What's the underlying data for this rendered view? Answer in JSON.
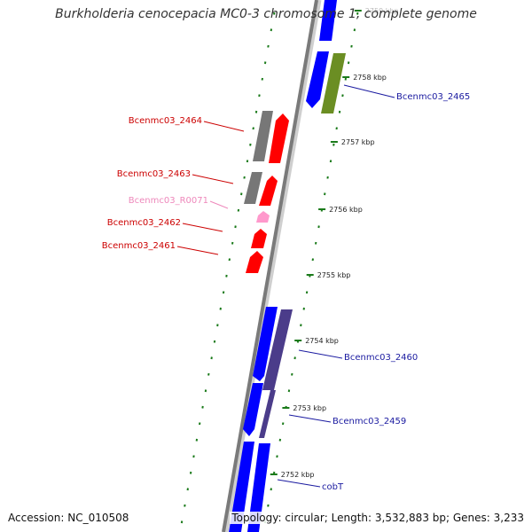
{
  "title": "Burkholderia cenocepacia MC0-3 chromosome 1, complete genome",
  "accession_text": "Accession: NC_010508",
  "summary_text": "Topology: circular; Length: 3,532,883 bp; Genes: 3,233",
  "colors": {
    "backbone": "#888888",
    "cds_forward": "#0000ff",
    "cds_reverse": "#ff0000",
    "rna": "#ff99cc",
    "cog_gray": "#777777",
    "cog_olive": "#6b8e23",
    "cog_purple": "#4b3c8a",
    "tick": "#1a7a1a",
    "label_forward": "#1a1aa0",
    "label_reverse": "#cc0000",
    "label_rna": "#ee88bb"
  },
  "ticks": [
    "2759 kbp",
    "2758 kbp",
    "2757 kbp",
    "2756 kbp",
    "2755 kbp",
    "2754 kbp",
    "2753 kbp",
    "2752 kbp"
  ],
  "genes": [
    {
      "name": "Bcenmc03_2465",
      "strand": "forward"
    },
    {
      "name": "Bcenmc03_2464",
      "strand": "reverse"
    },
    {
      "name": "Bcenmc03_2463",
      "strand": "reverse"
    },
    {
      "name": "Bcenmc03_R0071",
      "strand": "rna"
    },
    {
      "name": "Bcenmc03_2462",
      "strand": "reverse"
    },
    {
      "name": "Bcenmc03_2461",
      "strand": "reverse"
    },
    {
      "name": "Bcenmc03_2460",
      "strand": "forward"
    },
    {
      "name": "Bcenmc03_2459",
      "strand": "forward"
    },
    {
      "name": "cobT",
      "strand": "forward"
    }
  ]
}
